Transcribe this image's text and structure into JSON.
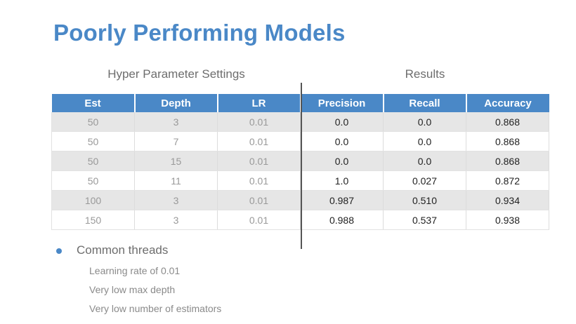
{
  "title": "Poorly Performing Models",
  "groups": {
    "hyper": "Hyper Parameter Settings",
    "results": "Results"
  },
  "table": {
    "headers": [
      "Est",
      "Depth",
      "LR",
      "Precision",
      "Recall",
      "Accuracy"
    ],
    "rows": [
      [
        "50",
        "3",
        "0.01",
        "0.0",
        "0.0",
        "0.868"
      ],
      [
        "50",
        "7",
        "0.01",
        "0.0",
        "0.0",
        "0.868"
      ],
      [
        "50",
        "15",
        "0.01",
        "0.0",
        "0.0",
        "0.868"
      ],
      [
        "50",
        "11",
        "0.01",
        "1.0",
        "0.027",
        "0.872"
      ],
      [
        "100",
        "3",
        "0.01",
        "0.987",
        "0.510",
        "0.934"
      ],
      [
        "150",
        "3",
        "0.01",
        "0.988",
        "0.537",
        "0.938"
      ]
    ]
  },
  "notes": {
    "heading": "Common threads",
    "items": [
      "Learning rate of 0.01",
      "Very low max depth",
      "Very low number of estimators"
    ]
  },
  "colors": {
    "accent": "#4a88c7",
    "row_shade": "#e6e6e6"
  }
}
